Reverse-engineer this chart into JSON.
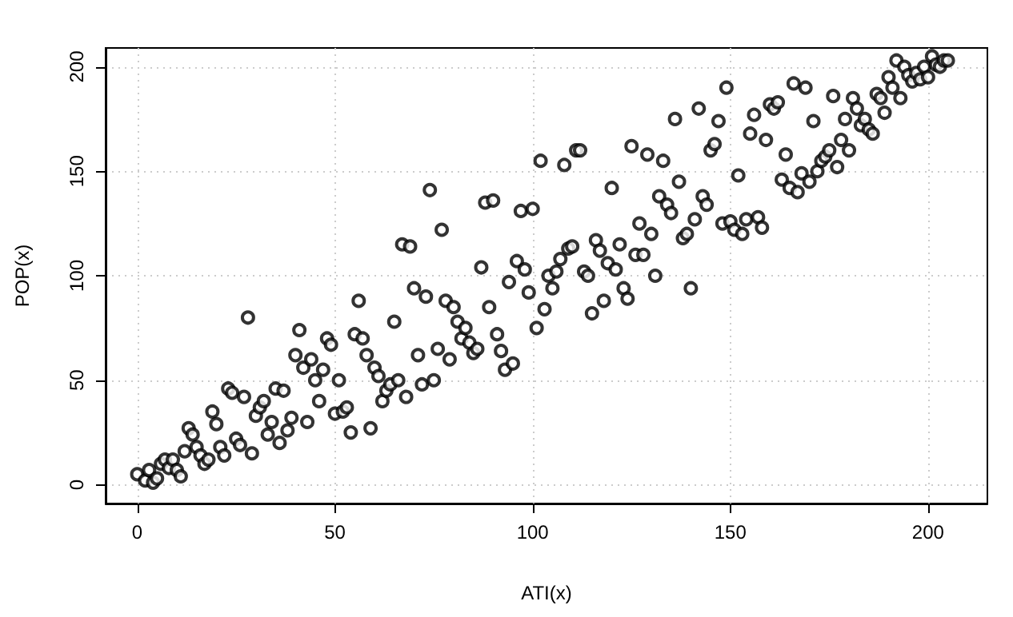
{
  "chart_data": {
    "type": "scatter",
    "xlabel": "ATI(x)",
    "ylabel": "POP(x)",
    "xlim": [
      -8,
      215
    ],
    "ylim": [
      -9,
      209
    ],
    "xticks": [
      0,
      50,
      100,
      150,
      200
    ],
    "yticks": [
      0,
      50,
      100,
      150,
      200
    ],
    "grid": true,
    "marker": "circle",
    "series": [
      {
        "color": "#000000",
        "x": [
          0,
          2,
          3,
          4,
          5,
          6,
          7,
          8,
          9,
          10,
          11,
          12,
          13,
          14,
          15,
          16,
          17,
          18,
          19,
          20,
          21,
          22,
          23,
          24,
          25,
          26,
          27,
          28,
          29,
          30,
          31,
          32,
          33,
          34,
          35,
          36,
          37,
          38,
          39,
          40,
          41,
          42,
          43,
          44,
          45,
          46,
          47,
          48,
          49,
          50,
          51,
          52,
          53,
          54,
          55,
          56,
          57,
          58,
          59,
          60,
          61,
          62,
          63,
          64,
          65,
          66,
          67,
          68,
          69,
          70,
          71,
          72,
          73,
          74,
          75,
          76,
          77,
          78,
          79,
          80,
          81,
          82,
          83,
          84,
          85,
          86,
          87,
          88,
          89,
          90,
          91,
          92,
          93,
          94,
          95,
          96,
          97,
          98,
          99,
          100,
          101,
          102,
          103,
          104,
          105,
          106,
          107,
          108,
          109,
          110,
          111,
          112,
          113,
          114,
          115,
          116,
          117,
          118,
          119,
          120,
          121,
          122,
          123,
          124,
          125,
          126,
          127,
          128,
          129,
          130,
          131,
          132,
          133,
          134,
          135,
          136,
          137,
          138,
          139,
          140,
          141,
          142,
          143,
          144,
          145,
          146,
          147,
          148,
          149,
          150,
          151,
          152,
          153,
          154,
          155,
          156,
          157,
          158,
          159,
          160,
          161,
          162,
          163,
          164,
          165,
          166,
          167,
          168,
          169,
          170,
          171,
          172,
          173,
          174,
          175,
          176,
          177,
          178,
          179,
          180,
          181,
          182,
          183,
          184,
          185,
          186,
          187,
          188,
          189,
          190,
          191,
          192,
          193,
          194,
          195,
          196,
          197,
          198,
          199,
          200,
          201,
          202,
          203,
          204,
          205
        ],
        "values": [
          5,
          2,
          7,
          1,
          3,
          10,
          12,
          8,
          12,
          7,
          4,
          16,
          27,
          24,
          18,
          14,
          10,
          12,
          35,
          29,
          18,
          14,
          46,
          44,
          22,
          19,
          42,
          80,
          15,
          33,
          37,
          40,
          24,
          30,
          46,
          20,
          45,
          26,
          32,
          62,
          74,
          56,
          30,
          60,
          50,
          40,
          55,
          70,
          67,
          34,
          50,
          35,
          37,
          25,
          72,
          88,
          70,
          62,
          27,
          56,
          52,
          40,
          45,
          48,
          78,
          50,
          115,
          42,
          114,
          94,
          62,
          48,
          90,
          141,
          50,
          65,
          122,
          88,
          60,
          85,
          78,
          70,
          75,
          68,
          63,
          65,
          104,
          135,
          85,
          136,
          72,
          64,
          55,
          97,
          58,
          107,
          131,
          103,
          92,
          132,
          75,
          155,
          84,
          100,
          94,
          102,
          108,
          153,
          113,
          114,
          160,
          160,
          102,
          100,
          82,
          117,
          112,
          88,
          106,
          142,
          103,
          115,
          94,
          89,
          162,
          110,
          125,
          110,
          158,
          120,
          100,
          138,
          155,
          134,
          130,
          175,
          145,
          118,
          120,
          94,
          127,
          180,
          138,
          134,
          160,
          163,
          174,
          125,
          190,
          126,
          122,
          148,
          120,
          127,
          168,
          177,
          128,
          123,
          165,
          182,
          180,
          183,
          146,
          158,
          142,
          192,
          140,
          149,
          190,
          145,
          174,
          150,
          155,
          157,
          160,
          186,
          152,
          165,
          175,
          160,
          185,
          180,
          172,
          175,
          170,
          168,
          187,
          185,
          178,
          195,
          190,
          203,
          185,
          200,
          196,
          193,
          197,
          194,
          200,
          195,
          205,
          201,
          200,
          203,
          203
        ]
      }
    ]
  }
}
